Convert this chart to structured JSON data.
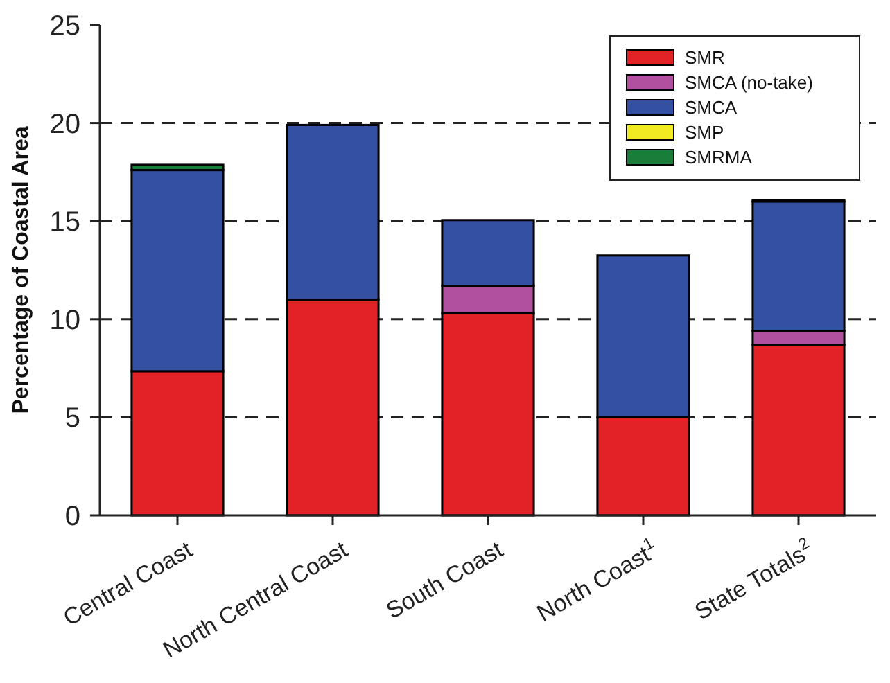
{
  "chart_data": {
    "type": "bar",
    "stacked": true,
    "ylabel": "Percentage of Coastal Area",
    "categories": [
      "Central Coast",
      "North Central Coast",
      "South Coast",
      "North Coast$^{1}$",
      "State Totals$^{2}$"
    ],
    "series": [
      {
        "name": "SMR",
        "color": "#e32228",
        "values": [
          7.35,
          11.0,
          10.3,
          5.0,
          8.7
        ]
      },
      {
        "name": "SMCA (no-take)",
        "color": "#b0509e",
        "values": [
          0,
          0,
          1.4,
          0,
          0.7
        ]
      },
      {
        "name": "SMCA",
        "color": "#3350a3",
        "values": [
          10.25,
          8.9,
          3.35,
          8.25,
          6.6
        ]
      },
      {
        "name": "SMP",
        "color": "#f2ea22",
        "values": [
          0,
          0,
          0,
          0,
          0
        ]
      },
      {
        "name": "SMRMA",
        "color": "#1b7d3a",
        "values": [
          0.27,
          0,
          0,
          0,
          0.05
        ]
      }
    ],
    "ylim": [
      0,
      25
    ],
    "yticks": [
      0,
      5,
      10,
      15,
      20,
      25
    ],
    "grid": "y",
    "legend": "top right"
  }
}
